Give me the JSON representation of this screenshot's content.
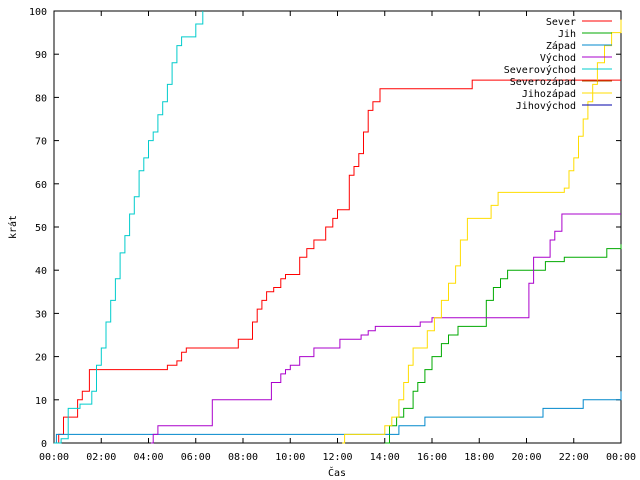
{
  "chart_data": {
    "type": "line",
    "xlabel": "Čas",
    "ylabel": "krát",
    "xlim": [
      0,
      24
    ],
    "ylim": [
      0,
      100
    ],
    "x_ticks": [
      {
        "value": 0,
        "label": "00:00"
      },
      {
        "value": 2,
        "label": "02:00"
      },
      {
        "value": 4,
        "label": "04:00"
      },
      {
        "value": 6,
        "label": "06:00"
      },
      {
        "value": 8,
        "label": "08:00"
      },
      {
        "value": 10,
        "label": "10:00"
      },
      {
        "value": 12,
        "label": "12:00"
      },
      {
        "value": 14,
        "label": "14:00"
      },
      {
        "value": 16,
        "label": "16:00"
      },
      {
        "value": 18,
        "label": "18:00"
      },
      {
        "value": 20,
        "label": "20:00"
      },
      {
        "value": 22,
        "label": "22:00"
      },
      {
        "value": 24,
        "label": "00:00"
      }
    ],
    "y_ticks": [
      0,
      10,
      20,
      30,
      40,
      50,
      60,
      70,
      80,
      90,
      100
    ],
    "grid": false,
    "legend_position": "top-right",
    "series": [
      {
        "name": "Sever",
        "color": "#ff0000",
        "points": [
          [
            0,
            0
          ],
          [
            0.2,
            2
          ],
          [
            0.4,
            6
          ],
          [
            0.8,
            6
          ],
          [
            1.0,
            10
          ],
          [
            1.2,
            12
          ],
          [
            1.5,
            17
          ],
          [
            2,
            17
          ],
          [
            3,
            17
          ],
          [
            4,
            17
          ],
          [
            4.7,
            17
          ],
          [
            4.8,
            18
          ],
          [
            5.2,
            19
          ],
          [
            5.4,
            21
          ],
          [
            5.6,
            22
          ],
          [
            6,
            22
          ],
          [
            7,
            22
          ],
          [
            7.6,
            22
          ],
          [
            7.8,
            24
          ],
          [
            8.2,
            24
          ],
          [
            8.4,
            28
          ],
          [
            8.6,
            31
          ],
          [
            8.8,
            33
          ],
          [
            9.0,
            35
          ],
          [
            9.3,
            36
          ],
          [
            9.6,
            38
          ],
          [
            9.8,
            39
          ],
          [
            10.2,
            39
          ],
          [
            10.4,
            43
          ],
          [
            10.7,
            45
          ],
          [
            11.0,
            47
          ],
          [
            11.4,
            47
          ],
          [
            11.5,
            50
          ],
          [
            11.8,
            52
          ],
          [
            12.0,
            54
          ],
          [
            12.3,
            54
          ],
          [
            12.5,
            62
          ],
          [
            12.7,
            64
          ],
          [
            12.9,
            67
          ],
          [
            13.1,
            72
          ],
          [
            13.3,
            77
          ],
          [
            13.5,
            79
          ],
          [
            13.8,
            82
          ],
          [
            14,
            82
          ],
          [
            15,
            82
          ],
          [
            16,
            82
          ],
          [
            17,
            82
          ],
          [
            17.5,
            82
          ],
          [
            17.7,
            84
          ],
          [
            18,
            84
          ],
          [
            19,
            84
          ],
          [
            20,
            84
          ],
          [
            21,
            84
          ],
          [
            22,
            84
          ],
          [
            23,
            84
          ],
          [
            24,
            84
          ]
        ]
      },
      {
        "name": "Jih",
        "color": "#00aa00",
        "points": [
          [
            14.0,
            0
          ],
          [
            14.2,
            4
          ],
          [
            14.5,
            6
          ],
          [
            14.8,
            8
          ],
          [
            15.2,
            12
          ],
          [
            15.4,
            14
          ],
          [
            15.7,
            17
          ],
          [
            16.0,
            20
          ],
          [
            16.4,
            23
          ],
          [
            16.7,
            25
          ],
          [
            17.1,
            27
          ],
          [
            17.5,
            27
          ],
          [
            17.8,
            27
          ],
          [
            18.3,
            33
          ],
          [
            18.6,
            36
          ],
          [
            18.9,
            38
          ],
          [
            19.2,
            40
          ],
          [
            19.5,
            40
          ],
          [
            20,
            40
          ],
          [
            20.6,
            40
          ],
          [
            20.8,
            42
          ],
          [
            21.3,
            42
          ],
          [
            21.6,
            43
          ],
          [
            22.0,
            43
          ],
          [
            22.5,
            43
          ],
          [
            23.2,
            43
          ],
          [
            23.4,
            45
          ],
          [
            24,
            46
          ]
        ]
      },
      {
        "name": "Západ",
        "color": "#0088cc",
        "points": [
          [
            0,
            0
          ],
          [
            0.1,
            2
          ],
          [
            2,
            2
          ],
          [
            4,
            2
          ],
          [
            6,
            2
          ],
          [
            8,
            2
          ],
          [
            10,
            2
          ],
          [
            12,
            2
          ],
          [
            14,
            2
          ],
          [
            14.4,
            2
          ],
          [
            14.6,
            4
          ],
          [
            15.5,
            4
          ],
          [
            15.7,
            6
          ],
          [
            16,
            6
          ],
          [
            18,
            6
          ],
          [
            20,
            6
          ],
          [
            20.5,
            6
          ],
          [
            20.7,
            8
          ],
          [
            21,
            8
          ],
          [
            22,
            8
          ],
          [
            22.4,
            10
          ],
          [
            23,
            10
          ],
          [
            23.8,
            10
          ],
          [
            24,
            12
          ]
        ]
      },
      {
        "name": "Východ",
        "color": "#aa00cc",
        "points": [
          [
            4.1,
            0
          ],
          [
            4.2,
            2
          ],
          [
            4.4,
            4
          ],
          [
            6.5,
            4
          ],
          [
            6.7,
            10
          ],
          [
            9.0,
            10
          ],
          [
            9.2,
            14
          ],
          [
            9.6,
            16
          ],
          [
            9.8,
            17
          ],
          [
            10.0,
            18
          ],
          [
            10.4,
            20
          ],
          [
            11.0,
            22
          ],
          [
            11.5,
            22
          ],
          [
            12.1,
            24
          ],
          [
            12.6,
            24
          ],
          [
            13.0,
            25
          ],
          [
            13.3,
            26
          ],
          [
            13.6,
            27
          ],
          [
            14.1,
            27
          ],
          [
            15,
            27
          ],
          [
            15.5,
            28
          ],
          [
            16.0,
            29
          ],
          [
            17,
            29
          ],
          [
            18,
            29
          ],
          [
            19,
            29
          ],
          [
            20,
            29
          ],
          [
            20.1,
            37
          ],
          [
            20.3,
            43
          ],
          [
            20.6,
            43
          ],
          [
            21.0,
            47
          ],
          [
            21.2,
            49
          ],
          [
            21.5,
            53
          ],
          [
            22,
            53
          ],
          [
            23,
            53
          ],
          [
            24,
            53
          ]
        ]
      },
      {
        "name": "Severovýchod",
        "color": "#00cccc",
        "points": [
          [
            0,
            0
          ],
          [
            0.3,
            1
          ],
          [
            0.6,
            8
          ],
          [
            0.9,
            8
          ],
          [
            1.1,
            9
          ],
          [
            1.4,
            9
          ],
          [
            1.6,
            12
          ],
          [
            1.8,
            18
          ],
          [
            2.0,
            22
          ],
          [
            2.2,
            28
          ],
          [
            2.4,
            33
          ],
          [
            2.6,
            38
          ],
          [
            2.8,
            44
          ],
          [
            3.0,
            48
          ],
          [
            3.2,
            53
          ],
          [
            3.4,
            57
          ],
          [
            3.6,
            63
          ],
          [
            3.8,
            66
          ],
          [
            4.0,
            70
          ],
          [
            4.2,
            72
          ],
          [
            4.4,
            76
          ],
          [
            4.6,
            79
          ],
          [
            4.8,
            83
          ],
          [
            5.0,
            88
          ],
          [
            5.2,
            92
          ],
          [
            5.4,
            94
          ],
          [
            5.8,
            94
          ],
          [
            6.0,
            97
          ],
          [
            6.3,
            100
          ]
        ]
      },
      {
        "name": "Severozápad",
        "color": "#aa5500",
        "points": []
      },
      {
        "name": "Jihozápad",
        "color": "#ffdd00",
        "points": [
          [
            12.2,
            0
          ],
          [
            12.3,
            2
          ],
          [
            13.9,
            2
          ],
          [
            14.0,
            4
          ],
          [
            14.3,
            6
          ],
          [
            14.6,
            10
          ],
          [
            14.8,
            14
          ],
          [
            15.0,
            18
          ],
          [
            15.2,
            22
          ],
          [
            15.6,
            22
          ],
          [
            15.8,
            26
          ],
          [
            16.1,
            29
          ],
          [
            16.4,
            33
          ],
          [
            16.7,
            37
          ],
          [
            17.0,
            41
          ],
          [
            17.2,
            47
          ],
          [
            17.5,
            52
          ],
          [
            18.2,
            52
          ],
          [
            18.5,
            55
          ],
          [
            18.8,
            58
          ],
          [
            19,
            58
          ],
          [
            20,
            58
          ],
          [
            21,
            58
          ],
          [
            21.6,
            59
          ],
          [
            21.8,
            63
          ],
          [
            22,
            66
          ],
          [
            22.2,
            71
          ],
          [
            22.4,
            75
          ],
          [
            22.6,
            79
          ],
          [
            22.8,
            83
          ],
          [
            23.0,
            88
          ],
          [
            23.3,
            92
          ],
          [
            23.6,
            95
          ],
          [
            24,
            98
          ]
        ]
      },
      {
        "name": "Jihovýchod",
        "color": "#0000aa",
        "points": []
      }
    ]
  }
}
